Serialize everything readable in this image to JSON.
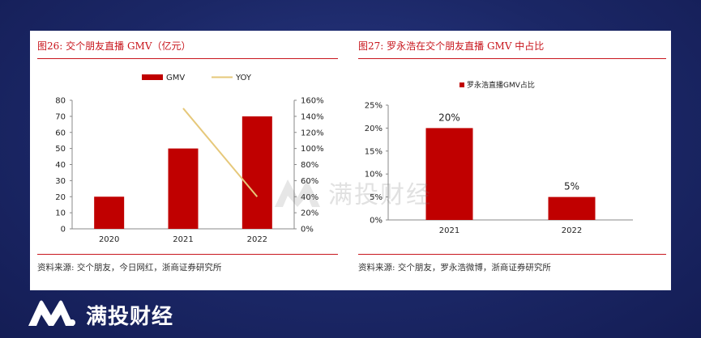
{
  "left_panel": {
    "title": "图26:  交个朋友直播 GMV（亿元）",
    "source": "资料来源:  交个朋友，今日网红，浙商证券研究所"
  },
  "right_panel": {
    "title": "图27:  罗永浩在交个朋友直播 GMV 中占比",
    "source": "资料来源:  交个朋友，罗永浩微博，浙商证券研究所"
  },
  "watermark_text": "满投财经",
  "brand": {
    "name": "满投财经",
    "logo_icon": "mt-logo-icon"
  },
  "colors": {
    "bar": "#c00000",
    "line": "#e6c87a",
    "accent": "#c8161d",
    "background": "#1d2a6b"
  },
  "chart_data": [
    {
      "type": "bar",
      "categories": [
        "2020",
        "2021",
        "2022"
      ],
      "series": [
        {
          "name": "GMV",
          "values": [
            20,
            50,
            70
          ],
          "axis": "left",
          "kind": "bar"
        },
        {
          "name": "YOY",
          "values": [
            null,
            150,
            40
          ],
          "axis": "right",
          "kind": "line"
        }
      ],
      "ylim": [
        0,
        80
      ],
      "yticks": [
        "0",
        "10",
        "20",
        "30",
        "40",
        "50",
        "60",
        "70",
        "80"
      ],
      "y2lim": [
        0,
        160
      ],
      "y2ticks": [
        "0%",
        "20%",
        "40%",
        "60%",
        "80%",
        "100%",
        "120%",
        "140%",
        "160%"
      ],
      "legend": [
        "GMV",
        "YOY"
      ],
      "legend_position": "top-center",
      "grid": false
    },
    {
      "type": "bar",
      "categories": [
        "2021",
        "2022"
      ],
      "series": [
        {
          "name": "罗永浩直播GMV占比",
          "values": [
            20,
            5
          ]
        }
      ],
      "data_labels": [
        "20%",
        "5%"
      ],
      "ylim": [
        0,
        25
      ],
      "yticks": [
        "0%",
        "5%",
        "10%",
        "15%",
        "20%",
        "25%"
      ],
      "legend": [
        "罗永浩直播GMV占比"
      ],
      "legend_position": "top-center",
      "grid": false
    }
  ]
}
